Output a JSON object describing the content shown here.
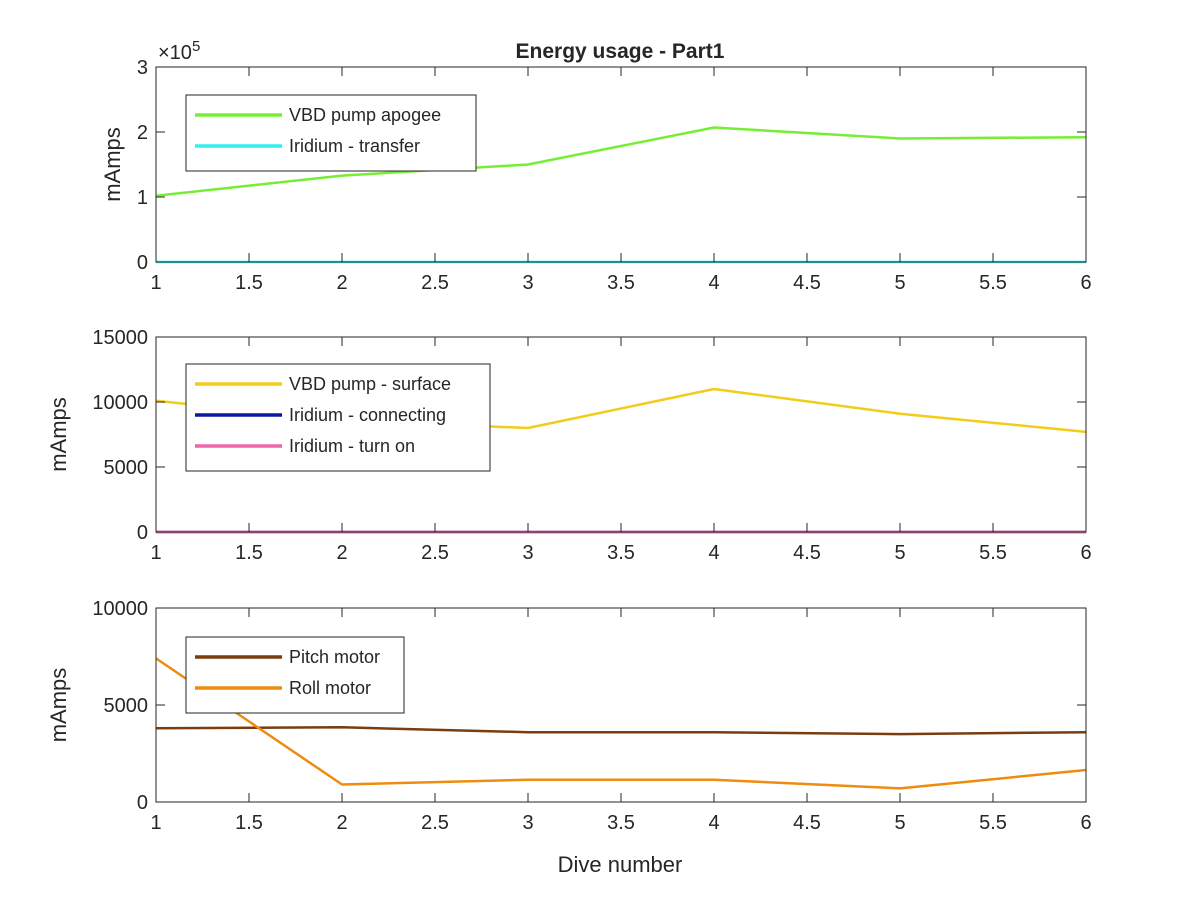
{
  "figure": {
    "title": "Energy usage - Part1",
    "xlabel": "Dive number"
  },
  "chart_data": [
    {
      "type": "line",
      "title": "Energy usage - Part1",
      "xlabel": "",
      "ylabel": "mAmps",
      "xlim": [
        1,
        6
      ],
      "ylim": [
        0,
        3
      ],
      "y_exponent_label": "×10",
      "y_exponent": "5",
      "xticks": [
        "1",
        "1.5",
        "2",
        "2.5",
        "3",
        "3.5",
        "4",
        "4.5",
        "5",
        "5.5",
        "6"
      ],
      "yticks": [
        "0",
        "1",
        "2",
        "3"
      ],
      "grid": false,
      "legend_position": "top-left",
      "series": [
        {
          "name": "VBD pump apogee",
          "color": "#77ee33",
          "x": [
            1,
            2,
            3,
            4,
            5,
            6
          ],
          "values": [
            1.02,
            1.33,
            1.5,
            2.07,
            1.9,
            1.92
          ]
        },
        {
          "name": "Iridium - transfer",
          "color": "#33eeee",
          "x": [
            1,
            2,
            3,
            4,
            5,
            6
          ],
          "values": [
            0,
            0,
            0,
            0,
            0,
            0
          ]
        }
      ]
    },
    {
      "type": "line",
      "title": "",
      "xlabel": "",
      "ylabel": "mAmps",
      "xlim": [
        1,
        6
      ],
      "ylim": [
        0,
        15000
      ],
      "xticks": [
        "1",
        "1.5",
        "2",
        "2.5",
        "3",
        "3.5",
        "4",
        "4.5",
        "5",
        "5.5",
        "6"
      ],
      "yticks": [
        "0",
        "5000",
        "10000",
        "15000"
      ],
      "grid": false,
      "legend_position": "top-left",
      "series": [
        {
          "name": "VBD pump - surface",
          "color": "#f2cc1a",
          "x": [
            1,
            2,
            3,
            4,
            5,
            6
          ],
          "values": [
            10100,
            8600,
            8000,
            11000,
            9100,
            7700
          ]
        },
        {
          "name": "Iridium - connecting",
          "color": "#0a1aa0",
          "x": [
            1,
            2,
            3,
            4,
            5,
            6
          ],
          "values": [
            0,
            0,
            0,
            0,
            0,
            0
          ]
        },
        {
          "name": "Iridium - turn on",
          "color": "#ee66aa",
          "x": [
            1,
            2,
            3,
            4,
            5,
            6
          ],
          "values": [
            0,
            0,
            0,
            0,
            0,
            0
          ]
        }
      ]
    },
    {
      "type": "line",
      "title": "",
      "xlabel": "Dive number",
      "ylabel": "mAmps",
      "xlim": [
        1,
        6
      ],
      "ylim": [
        0,
        10000
      ],
      "xticks": [
        "1",
        "1.5",
        "2",
        "2.5",
        "3",
        "3.5",
        "4",
        "4.5",
        "5",
        "5.5",
        "6"
      ],
      "yticks": [
        "0",
        "5000",
        "10000"
      ],
      "grid": false,
      "legend_position": "top-left",
      "series": [
        {
          "name": "Pitch motor",
          "color": "#7a3d10",
          "x": [
            1,
            2,
            3,
            4,
            5,
            6
          ],
          "values": [
            3800,
            3850,
            3600,
            3600,
            3500,
            3600
          ]
        },
        {
          "name": "Roll motor",
          "color": "#ee8c10",
          "x": [
            1,
            2,
            3,
            4,
            5,
            6
          ],
          "values": [
            7400,
            900,
            1150,
            1150,
            700,
            1650
          ]
        }
      ]
    }
  ]
}
